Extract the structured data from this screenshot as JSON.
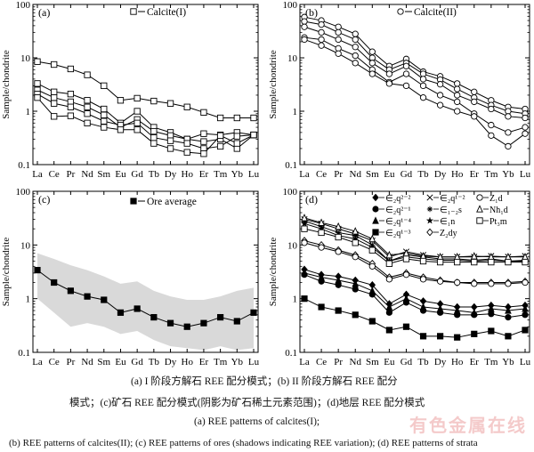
{
  "chart_data": [
    {
      "type": "line",
      "panel_label": "(a)",
      "ylabel": "Sample/chondrite",
      "yscale": "log",
      "ylim": [
        0.1,
        100
      ],
      "yticks": [
        "100",
        "10",
        "1",
        "0.1"
      ],
      "categories": [
        "La",
        "Ce",
        "Pr",
        "Nd",
        "Sm",
        "Eu",
        "Gd",
        "Tb",
        "Dy",
        "Ho",
        "Er",
        "Tm",
        "Yb",
        "Lu"
      ],
      "legend": [
        "Calcite(I)"
      ],
      "series": [
        {
          "values": [
            8.5,
            7.5,
            6.2,
            4.8,
            3.0,
            1.6,
            1.75,
            1.55,
            1.4,
            1.2,
            0.95,
            0.75,
            0.75,
            0.75
          ]
        },
        {
          "values": [
            3.3,
            2.3,
            2.1,
            1.6,
            1.1,
            0.6,
            1.0,
            0.5,
            0.4,
            0.3,
            0.38,
            0.36,
            0.4,
            0.36
          ]
        },
        {
          "values": [
            2.5,
            1.8,
            1.5,
            1.2,
            0.85,
            0.5,
            0.7,
            0.42,
            0.35,
            0.3,
            0.27,
            0.3,
            0.2,
            0.36
          ]
        },
        {
          "values": [
            2.1,
            1.4,
            1.2,
            0.9,
            0.65,
            0.55,
            0.6,
            0.32,
            0.28,
            0.25,
            0.2,
            0.22,
            0.34,
            0.36
          ]
        },
        {
          "values": [
            1.8,
            0.8,
            0.82,
            0.6,
            0.5,
            0.45,
            0.45,
            0.25,
            0.2,
            0.17,
            0.16,
            0.35,
            0.25,
            0.36
          ]
        }
      ]
    },
    {
      "type": "line",
      "panel_label": "(b)",
      "ylabel": "Sample/chondrite",
      "yscale": "log",
      "ylim": [
        0.1,
        100
      ],
      "yticks": [
        "100",
        "10",
        "1",
        "0.1"
      ],
      "categories": [
        "La",
        "Ce",
        "Pr",
        "Nd",
        "Sm",
        "Eu",
        "Gd",
        "Tb",
        "Dy",
        "Ho",
        "Er",
        "Tm",
        "Yb",
        "Lu"
      ],
      "legend": [
        "Calcite(II)"
      ],
      "series": [
        {
          "values": [
            58,
            50,
            38,
            28,
            13,
            7,
            9.5,
            5.5,
            4.5,
            3.3,
            2.3,
            1.6,
            1.2,
            1.1
          ]
        },
        {
          "values": [
            48,
            42,
            30,
            22,
            10,
            6,
            8,
            5,
            3.9,
            2.6,
            1.8,
            1.3,
            1.0,
            0.9
          ]
        },
        {
          "values": [
            38,
            30,
            22,
            16,
            8,
            5,
            7,
            4,
            3.2,
            2.0,
            1.5,
            1.1,
            0.8,
            0.75
          ]
        },
        {
          "values": [
            24,
            22,
            15,
            11,
            6,
            3.5,
            5,
            3,
            2.0,
            1.5,
            0.9,
            0.55,
            0.4,
            0.5
          ]
        },
        {
          "values": [
            22,
            17,
            12,
            8,
            5,
            3.3,
            3,
            1.8,
            1.3,
            1.0,
            0.8,
            0.35,
            0.22,
            0.38
          ]
        }
      ]
    },
    {
      "type": "line",
      "panel_label": "(c)",
      "ylabel": "Sample/chondrite",
      "yscale": "log",
      "ylim": [
        0.1,
        100
      ],
      "yticks": [
        "100",
        "10",
        "1",
        "0.1"
      ],
      "categories": [
        "La",
        "Ce",
        "Pr",
        "Nd",
        "Sm",
        "Eu",
        "Gd",
        "Tb",
        "Dy",
        "Ho",
        "Er",
        "Tm",
        "Yb",
        "Lu"
      ],
      "legend": [
        "Ore average"
      ],
      "series": [
        {
          "values": [
            3.4,
            2.0,
            1.4,
            1.1,
            0.95,
            0.55,
            0.65,
            0.45,
            0.35,
            0.3,
            0.35,
            0.45,
            0.38,
            0.55
          ]
        }
      ],
      "band_upper": [
        7,
        5.5,
        4.2,
        3.4,
        2.6,
        1.9,
        2.1,
        1.4,
        1.1,
        0.95,
        0.95,
        1.1,
        1.4,
        1.6
      ],
      "band_lower": [
        1.0,
        0.55,
        0.3,
        0.35,
        0.3,
        0.22,
        0.25,
        0.17,
        0.13,
        0.12,
        0.11,
        0.13,
        0.11,
        0.12
      ]
    },
    {
      "type": "line",
      "panel_label": "(d)",
      "ylabel": "Sample/chondrite",
      "yscale": "log",
      "ylim": [
        0.1,
        100
      ],
      "yticks": [
        "100",
        "10",
        "1",
        "0.1"
      ],
      "categories": [
        "La",
        "Ce",
        "Pr",
        "Nd",
        "Sm",
        "Eu",
        "Gd",
        "Tb",
        "Dy",
        "Ho",
        "Er",
        "Tm",
        "Yb",
        "Lu"
      ],
      "legend": [
        "∈₂q²⁻²",
        "∈₂q²⁻¹",
        "∈₂q¹⁻⁴",
        "∈₂q¹⁻³",
        "∈₂q¹⁻²",
        "∈₁₋₂s",
        "∈₁n",
        "Z₂dy",
        "Z₁d",
        "Nh₁d",
        "Pt₃m"
      ],
      "series": [
        {
          "marker": "diamond-filled",
          "values": [
            3.5,
            2.8,
            2.6,
            2.2,
            1.8,
            0.8,
            1.2,
            0.9,
            0.8,
            0.7,
            0.7,
            0.75,
            0.7,
            0.75
          ]
        },
        {
          "marker": "circle-filled",
          "values": [
            2.8,
            2.1,
            1.8,
            1.5,
            1.2,
            0.55,
            0.85,
            0.6,
            0.55,
            0.5,
            0.5,
            0.52,
            0.45,
            0.5
          ]
        },
        {
          "marker": "triangle-filled",
          "values": [
            3.0,
            2.5,
            2.2,
            1.9,
            1.4,
            0.7,
            1.0,
            0.7,
            0.65,
            0.6,
            0.55,
            0.65,
            0.6,
            0.65
          ]
        },
        {
          "marker": "square-filled",
          "values": [
            1.0,
            0.7,
            0.6,
            0.5,
            0.38,
            0.26,
            0.3,
            0.2,
            0.2,
            0.19,
            0.22,
            0.25,
            0.2,
            0.26
          ]
        },
        {
          "marker": "x",
          "values": [
            30,
            25,
            20,
            16,
            12,
            6,
            7.5,
            6.5,
            6.0,
            6.0,
            6.0,
            6.2,
            6.0,
            6.2
          ]
        },
        {
          "marker": "asterisk",
          "values": [
            28,
            22,
            17,
            15,
            10,
            5,
            6.5,
            6,
            5.5,
            5.5,
            5.2,
            5.5,
            5.0,
            5.2
          ]
        },
        {
          "marker": "star",
          "values": [
            25,
            20,
            15,
            13,
            9,
            5,
            6.0,
            5.5,
            5.2,
            5.2,
            5.0,
            5.2,
            5.0,
            5.0
          ]
        },
        {
          "marker": "diamond-open",
          "values": [
            12,
            10,
            8,
            6.5,
            4.5,
            2.5,
            3.0,
            2.5,
            2.2,
            2.0,
            2.0,
            2.0,
            2.0,
            2.1
          ]
        },
        {
          "marker": "circle-open",
          "values": [
            11,
            9,
            7.5,
            6,
            4,
            2.3,
            2.8,
            2.3,
            2.1,
            2.0,
            1.9,
            1.9,
            1.9,
            2.0
          ]
        },
        {
          "marker": "triangle-open",
          "values": [
            32,
            26,
            22,
            18,
            13,
            6.5,
            7.0,
            6.2,
            6.0,
            6.0,
            6.2,
            6.0,
            6.0,
            6.0
          ]
        },
        {
          "marker": "square-open",
          "values": [
            20,
            17,
            14,
            11,
            8,
            4.5,
            5.5,
            5.0,
            4.8,
            4.8,
            4.8,
            4.8,
            4.8,
            4.8
          ]
        }
      ]
    }
  ],
  "captions": {
    "cn_line1": "(a) I 阶段方解石 REE 配分模式；(b) II 阶段方解石 REE 配分",
    "cn_line2": "模式；(c)矿石 REE 配分模式(阴影为矿石稀土元素范围)；(d)地层 REE 配分模式",
    "en_line1": "(a) REE patterns of calcites(I);",
    "en_line2": "(b) REE patterns of calcites(II); (c) REE patterns of ores (shadows indicating REE variation); (d) REE patterns of strata"
  },
  "watermark": "有色金属在线"
}
